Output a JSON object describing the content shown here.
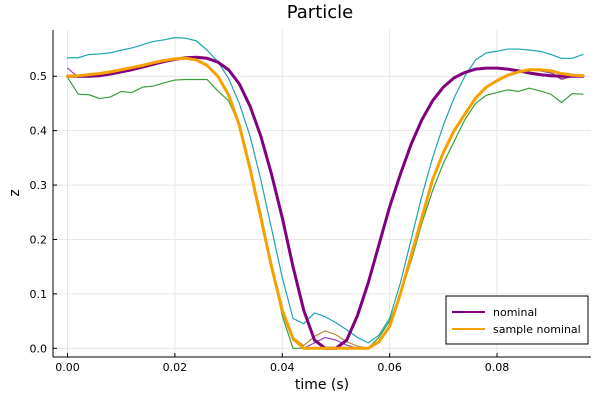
{
  "chart_data": {
    "type": "line",
    "title": "Particle",
    "xlabel": "time (s)",
    "ylabel": "z",
    "xlim": [
      -0.0027,
      0.0975
    ],
    "ylim": [
      -0.016,
      0.585
    ],
    "xticks": [
      0.0,
      0.02,
      0.04,
      0.06,
      0.08
    ],
    "xtick_labels": [
      "0.00",
      "0.02",
      "0.04",
      "0.06",
      "0.08"
    ],
    "yticks": [
      0.0,
      0.1,
      0.2,
      0.3,
      0.4,
      0.5
    ],
    "ytick_labels": [
      "0.0",
      "0.1",
      "0.2",
      "0.3",
      "0.4",
      "0.5"
    ],
    "grid": true,
    "legend_position": "bottom-right",
    "series": [
      {
        "color": "#1fa4b0",
        "width": 1.2,
        "x": [
          0.0,
          0.002,
          0.004,
          0.006,
          0.008,
          0.01,
          0.012,
          0.014,
          0.016,
          0.018,
          0.02,
          0.022,
          0.024,
          0.026,
          0.028,
          0.03,
          0.032,
          0.034,
          0.036,
          0.038,
          0.04,
          0.042,
          0.044,
          0.046,
          0.048,
          0.05,
          0.052,
          0.054,
          0.056,
          0.058,
          0.06,
          0.062,
          0.064,
          0.066,
          0.068,
          0.07,
          0.072,
          0.074,
          0.076,
          0.078,
          0.08,
          0.082,
          0.084,
          0.086,
          0.088,
          0.09,
          0.092,
          0.094,
          0.096
        ],
        "y": [
          0.534,
          0.534,
          0.54,
          0.541,
          0.543,
          0.548,
          0.552,
          0.558,
          0.564,
          0.567,
          0.571,
          0.57,
          0.565,
          0.548,
          0.527,
          0.496,
          0.45,
          0.39,
          0.31,
          0.22,
          0.13,
          0.055,
          0.045,
          0.065,
          0.058,
          0.047,
          0.034,
          0.02,
          0.01,
          0.024,
          0.055,
          0.12,
          0.2,
          0.28,
          0.35,
          0.41,
          0.46,
          0.5,
          0.53,
          0.543,
          0.546,
          0.55,
          0.55,
          0.548,
          0.546,
          0.54,
          0.533,
          0.533,
          0.54
        ]
      },
      {
        "color": "#3a9e3a",
        "width": 1.2,
        "x": [
          0.0,
          0.002,
          0.004,
          0.006,
          0.008,
          0.01,
          0.012,
          0.014,
          0.016,
          0.018,
          0.02,
          0.022,
          0.024,
          0.026,
          0.028,
          0.03,
          0.032,
          0.034,
          0.036,
          0.038,
          0.04,
          0.042,
          0.044,
          0.046,
          0.048,
          0.05,
          0.052,
          0.054,
          0.056,
          0.058,
          0.06,
          0.062,
          0.064,
          0.066,
          0.068,
          0.07,
          0.072,
          0.074,
          0.076,
          0.078,
          0.08,
          0.082,
          0.084,
          0.086,
          0.088,
          0.09,
          0.092,
          0.094,
          0.096
        ],
        "y": [
          0.498,
          0.467,
          0.466,
          0.459,
          0.462,
          0.472,
          0.47,
          0.48,
          0.482,
          0.488,
          0.493,
          0.494,
          0.494,
          0.494,
          0.473,
          0.455,
          0.41,
          0.33,
          0.25,
          0.15,
          0.06,
          0.0,
          0.0,
          0.0,
          0.0,
          0.0,
          0.0,
          0.0,
          0.0,
          0.02,
          0.05,
          0.1,
          0.16,
          0.23,
          0.29,
          0.34,
          0.38,
          0.42,
          0.45,
          0.465,
          0.47,
          0.475,
          0.472,
          0.478,
          0.473,
          0.467,
          0.452,
          0.468,
          0.467
        ]
      },
      {
        "color": "#b48a3e",
        "width": 1.2,
        "x": [
          0.0,
          0.002,
          0.004,
          0.006,
          0.008,
          0.01,
          0.012,
          0.014,
          0.016,
          0.018,
          0.02,
          0.022,
          0.024,
          0.026,
          0.028,
          0.03,
          0.032,
          0.034,
          0.036,
          0.038,
          0.04,
          0.042,
          0.044,
          0.046,
          0.048,
          0.05,
          0.052,
          0.054,
          0.056,
          0.058,
          0.06,
          0.062,
          0.064,
          0.066,
          0.068,
          0.07,
          0.072,
          0.074,
          0.076,
          0.078,
          0.08,
          0.082,
          0.084,
          0.086,
          0.088,
          0.09,
          0.092,
          0.094,
          0.096
        ],
        "y": [
          0.5,
          0.502,
          0.502,
          0.503,
          0.506,
          0.51,
          0.513,
          0.518,
          0.524,
          0.528,
          0.531,
          0.532,
          0.53,
          0.52,
          0.5,
          0.465,
          0.41,
          0.33,
          0.24,
          0.15,
          0.07,
          0.02,
          0.005,
          0.022,
          0.032,
          0.025,
          0.012,
          0.004,
          0.0,
          0.01,
          0.04,
          0.1,
          0.17,
          0.24,
          0.31,
          0.36,
          0.4,
          0.43,
          0.46,
          0.48,
          0.492,
          0.502,
          0.508,
          0.512,
          0.512,
          0.508,
          0.494,
          0.5,
          0.502
        ]
      },
      {
        "color": "#8e44ad",
        "width": 1.2,
        "x": [
          0.0,
          0.002,
          0.004,
          0.006,
          0.008,
          0.01,
          0.012,
          0.014,
          0.016,
          0.018,
          0.02,
          0.022,
          0.024,
          0.026,
          0.028,
          0.03,
          0.032,
          0.034,
          0.036,
          0.038,
          0.04,
          0.042,
          0.044,
          0.046,
          0.048,
          0.05,
          0.052,
          0.054,
          0.056,
          0.058,
          0.06,
          0.062,
          0.064,
          0.066,
          0.068,
          0.07,
          0.072,
          0.074,
          0.076,
          0.078,
          0.08,
          0.082,
          0.084,
          0.086,
          0.088,
          0.09,
          0.092,
          0.094,
          0.096
        ],
        "y": [
          0.515,
          0.498,
          0.5,
          0.5,
          0.505,
          0.51,
          0.514,
          0.519,
          0.525,
          0.53,
          0.532,
          0.533,
          0.531,
          0.52,
          0.5,
          0.466,
          0.41,
          0.33,
          0.24,
          0.15,
          0.07,
          0.015,
          0.0,
          0.01,
          0.02,
          0.015,
          0.006,
          0.0,
          0.0,
          0.01,
          0.04,
          0.1,
          0.17,
          0.24,
          0.31,
          0.36,
          0.4,
          0.43,
          0.46,
          0.48,
          0.492,
          0.502,
          0.508,
          0.512,
          0.51,
          0.506,
          0.495,
          0.5,
          0.5
        ]
      },
      {
        "name": "nominal",
        "color": "#800080",
        "width": 3,
        "x": [
          0.0,
          0.002,
          0.004,
          0.006,
          0.008,
          0.01,
          0.012,
          0.014,
          0.016,
          0.018,
          0.02,
          0.022,
          0.024,
          0.026,
          0.028,
          0.03,
          0.032,
          0.034,
          0.036,
          0.038,
          0.04,
          0.042,
          0.044,
          0.046,
          0.048,
          0.05,
          0.052,
          0.054,
          0.056,
          0.058,
          0.06,
          0.062,
          0.064,
          0.066,
          0.068,
          0.07,
          0.072,
          0.074,
          0.076,
          0.078,
          0.08,
          0.082,
          0.084,
          0.086,
          0.088,
          0.09,
          0.092,
          0.094,
          0.096
        ],
        "y": [
          0.5,
          0.5,
          0.5,
          0.501,
          0.504,
          0.508,
          0.512,
          0.517,
          0.522,
          0.527,
          0.531,
          0.534,
          0.535,
          0.533,
          0.526,
          0.512,
          0.486,
          0.445,
          0.39,
          0.32,
          0.24,
          0.15,
          0.07,
          0.015,
          0.0,
          0.0,
          0.015,
          0.06,
          0.12,
          0.19,
          0.26,
          0.32,
          0.375,
          0.42,
          0.455,
          0.48,
          0.497,
          0.507,
          0.513,
          0.515,
          0.515,
          0.513,
          0.51,
          0.506,
          0.503,
          0.501,
          0.5,
          0.5,
          0.5
        ]
      },
      {
        "name": "sample nominal",
        "color": "#f5a100",
        "width": 3,
        "x": [
          0.0,
          0.002,
          0.004,
          0.006,
          0.008,
          0.01,
          0.012,
          0.014,
          0.016,
          0.018,
          0.02,
          0.022,
          0.024,
          0.026,
          0.028,
          0.03,
          0.032,
          0.034,
          0.036,
          0.038,
          0.04,
          0.042,
          0.044,
          0.046,
          0.048,
          0.05,
          0.052,
          0.054,
          0.056,
          0.058,
          0.06,
          0.062,
          0.064,
          0.066,
          0.068,
          0.07,
          0.072,
          0.074,
          0.076,
          0.078,
          0.08,
          0.082,
          0.084,
          0.086,
          0.088,
          0.09,
          0.092,
          0.094,
          0.096
        ],
        "y": [
          0.5,
          0.501,
          0.503,
          0.505,
          0.508,
          0.512,
          0.516,
          0.52,
          0.525,
          0.529,
          0.532,
          0.533,
          0.53,
          0.52,
          0.5,
          0.466,
          0.41,
          0.33,
          0.24,
          0.15,
          0.07,
          0.018,
          0.0,
          0.0,
          0.0,
          0.0,
          0.0,
          0.0,
          0.0,
          0.012,
          0.04,
          0.1,
          0.17,
          0.24,
          0.31,
          0.36,
          0.4,
          0.43,
          0.46,
          0.48,
          0.492,
          0.502,
          0.508,
          0.512,
          0.512,
          0.51,
          0.505,
          0.502,
          0.501
        ]
      }
    ]
  }
}
